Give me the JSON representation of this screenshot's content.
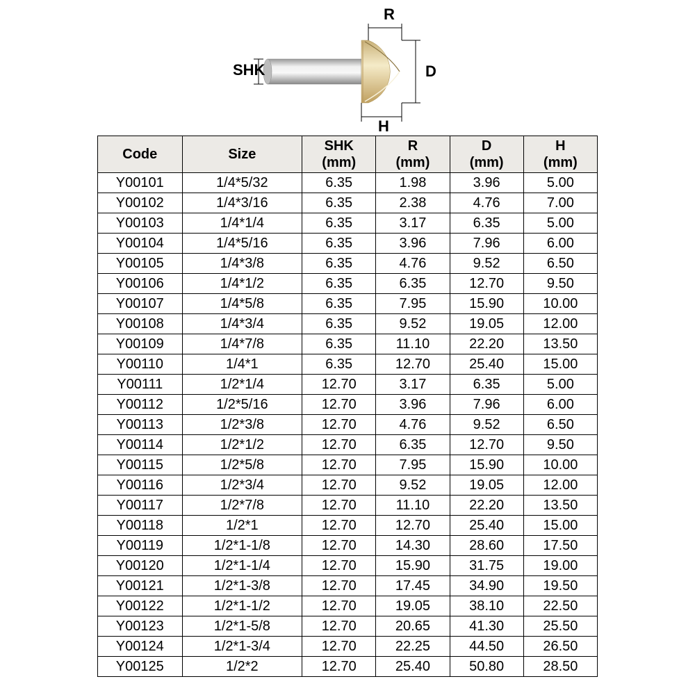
{
  "diagram": {
    "labels": {
      "shk": "SHK",
      "r": "R",
      "d": "D",
      "h": "H"
    },
    "colors": {
      "shank": "#b8b8b8",
      "shank_light": "#e8e8e8",
      "head": "#e8d4a8",
      "head_light": "#f5ebc8",
      "head_dark": "#c8b078",
      "dim_line": "#000000"
    }
  },
  "table": {
    "header_bg": "#eceae6",
    "border_color": "#000000",
    "columns": [
      {
        "label": "Code",
        "sub": "",
        "class": "col-code"
      },
      {
        "label": "Size",
        "sub": "",
        "class": "col-size"
      },
      {
        "label": "SHK",
        "sub": "(mm)",
        "class": "col-n"
      },
      {
        "label": "R",
        "sub": "(mm)",
        "class": "col-n"
      },
      {
        "label": "D",
        "sub": "(mm)",
        "class": "col-n"
      },
      {
        "label": "H",
        "sub": "(mm)",
        "class": "col-n"
      }
    ],
    "rows": [
      [
        "Y00101",
        "1/4*5/32",
        "6.35",
        "1.98",
        "3.96",
        "5.00"
      ],
      [
        "Y00102",
        "1/4*3/16",
        "6.35",
        "2.38",
        "4.76",
        "7.00"
      ],
      [
        "Y00103",
        "1/4*1/4",
        "6.35",
        "3.17",
        "6.35",
        "5.00"
      ],
      [
        "Y00104",
        "1/4*5/16",
        "6.35",
        "3.96",
        "7.96",
        "6.00"
      ],
      [
        "Y00105",
        "1/4*3/8",
        "6.35",
        "4.76",
        "9.52",
        "6.50"
      ],
      [
        "Y00106",
        "1/4*1/2",
        "6.35",
        "6.35",
        "12.70",
        "9.50"
      ],
      [
        "Y00107",
        "1/4*5/8",
        "6.35",
        "7.95",
        "15.90",
        "10.00"
      ],
      [
        "Y00108",
        "1/4*3/4",
        "6.35",
        "9.52",
        "19.05",
        "12.00"
      ],
      [
        "Y00109",
        "1/4*7/8",
        "6.35",
        "11.10",
        "22.20",
        "13.50"
      ],
      [
        "Y00110",
        "1/4*1",
        "6.35",
        "12.70",
        "25.40",
        "15.00"
      ],
      [
        "Y00111",
        "1/2*1/4",
        "12.70",
        "3.17",
        "6.35",
        "5.00"
      ],
      [
        "Y00112",
        "1/2*5/16",
        "12.70",
        "3.96",
        "7.96",
        "6.00"
      ],
      [
        "Y00113",
        "1/2*3/8",
        "12.70",
        "4.76",
        "9.52",
        "6.50"
      ],
      [
        "Y00114",
        "1/2*1/2",
        "12.70",
        "6.35",
        "12.70",
        "9.50"
      ],
      [
        "Y00115",
        "1/2*5/8",
        "12.70",
        "7.95",
        "15.90",
        "10.00"
      ],
      [
        "Y00116",
        "1/2*3/4",
        "12.70",
        "9.52",
        "19.05",
        "12.00"
      ],
      [
        "Y00117",
        "1/2*7/8",
        "12.70",
        "11.10",
        "22.20",
        "13.50"
      ],
      [
        "Y00118",
        "1/2*1",
        "12.70",
        "12.70",
        "25.40",
        "15.00"
      ],
      [
        "Y00119",
        "1/2*1-1/8",
        "12.70",
        "14.30",
        "28.60",
        "17.50"
      ],
      [
        "Y00120",
        "1/2*1-1/4",
        "12.70",
        "15.90",
        "31.75",
        "19.00"
      ],
      [
        "Y00121",
        "1/2*1-3/8",
        "12.70",
        "17.45",
        "34.90",
        "19.50"
      ],
      [
        "Y00122",
        "1/2*1-1/2",
        "12.70",
        "19.05",
        "38.10",
        "22.50"
      ],
      [
        "Y00123",
        "1/2*1-5/8",
        "12.70",
        "20.65",
        "41.30",
        "25.50"
      ],
      [
        "Y00124",
        "1/2*1-3/4",
        "12.70",
        "22.25",
        "44.50",
        "26.50"
      ],
      [
        "Y00125",
        "1/2*2",
        "12.70",
        "25.40",
        "50.80",
        "28.50"
      ]
    ]
  }
}
